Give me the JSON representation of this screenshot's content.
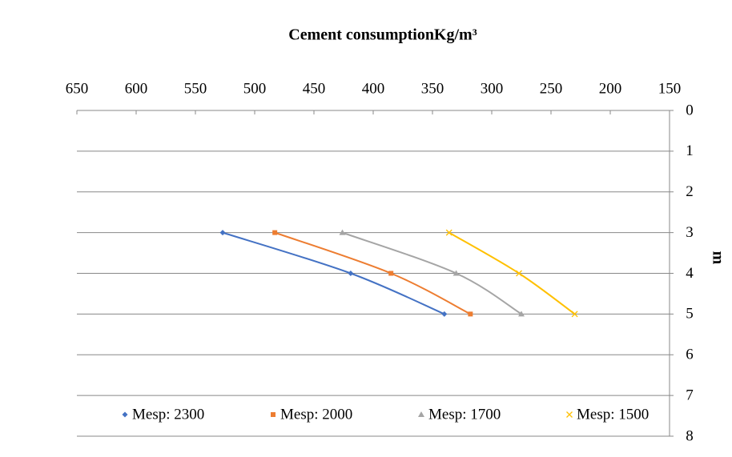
{
  "chart_data": {
    "type": "line",
    "title": "Cement consumptionKg/m³",
    "y_label": "m",
    "xlim": [
      150,
      650
    ],
    "x_reversed": true,
    "x_axis_position": "top",
    "xticks": [
      650,
      600,
      550,
      500,
      450,
      400,
      350,
      300,
      250,
      200,
      150
    ],
    "ylim": [
      0,
      8
    ],
    "y_inverted": true,
    "y_axis_position": "right",
    "yticks": [
      0,
      1,
      2,
      3,
      4,
      5,
      6,
      7,
      8
    ],
    "grid": true,
    "legend": "bottom",
    "series": [
      {
        "name": "Mesp: 2300",
        "color": "#4472c4",
        "marker": "diamond",
        "x": [
          527,
          419,
          340
        ],
        "values": [
          3,
          4,
          5
        ]
      },
      {
        "name": "Mesp: 2000",
        "color": "#ed7d31",
        "marker": "square",
        "x": [
          483,
          385,
          318
        ],
        "values": [
          3,
          4,
          5
        ]
      },
      {
        "name": "Mesp: 1700",
        "color": "#a5a5a5",
        "marker": "triangle",
        "x": [
          426,
          330,
          275
        ],
        "values": [
          3,
          4,
          5
        ]
      },
      {
        "name": "Mesp: 1500",
        "color": "#ffc000",
        "marker": "x",
        "x": [
          336,
          277,
          230
        ],
        "values": [
          3,
          4,
          5
        ]
      }
    ]
  }
}
